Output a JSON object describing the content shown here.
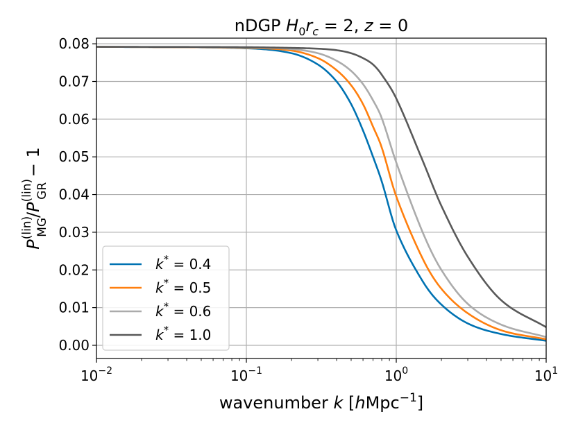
{
  "chart_data": {
    "type": "line",
    "title": {
      "pre": "nDGP ",
      "h": "H",
      "h_sub": "0",
      "r": "r",
      "r_sub": "c",
      "mid": " = 2, ",
      "z": "z",
      "post": " = 0"
    },
    "xlabel": {
      "pre": "wavenumber ",
      "k": "k",
      "mid": " [",
      "h": "h",
      "unit": "Mpc",
      "exp": "−1",
      "post": "]"
    },
    "ylabel": {
      "p1": "P",
      "p1_sup": "(lin)",
      "p1_sub": "MG",
      "slash": "/",
      "p2": "P",
      "p2_sup": "(lin)",
      "p2_sub": "GR",
      "post": " − 1"
    },
    "xscale": "log",
    "xlim": [
      0.01,
      10
    ],
    "ylim": [
      -0.0035,
      0.0815
    ],
    "x_ticks": [
      {
        "value": 0.01,
        "base": "10",
        "exp": "−2"
      },
      {
        "value": 0.1,
        "base": "10",
        "exp": "−1"
      },
      {
        "value": 1,
        "base": "10",
        "exp": "0"
      },
      {
        "value": 10,
        "base": "10",
        "exp": "1"
      }
    ],
    "y_ticks": [
      {
        "value": 0.0,
        "label": "0.00"
      },
      {
        "value": 0.01,
        "label": "0.01"
      },
      {
        "value": 0.02,
        "label": "0.02"
      },
      {
        "value": 0.03,
        "label": "0.03"
      },
      {
        "value": 0.04,
        "label": "0.04"
      },
      {
        "value": 0.05,
        "label": "0.05"
      },
      {
        "value": 0.06,
        "label": "0.06"
      },
      {
        "value": 0.07,
        "label": "0.07"
      },
      {
        "value": 0.08,
        "label": "0.08"
      }
    ],
    "grid": true,
    "legend_position": "lower-left",
    "series": [
      {
        "name": "k* = 0.4",
        "k_label": "k",
        "k_sup": "*",
        "eq_value": " = 0.4",
        "color": "#0072B2",
        "x": [
          0.01,
          0.1,
          0.2,
          0.3,
          0.4,
          0.5,
          0.6,
          0.7,
          0.8,
          1.0,
          1.5,
          2.0,
          3.0,
          5.0,
          10.0
        ],
        "y": [
          0.0792,
          0.0788,
          0.0775,
          0.0745,
          0.07,
          0.064,
          0.057,
          0.05,
          0.0435,
          0.0305,
          0.017,
          0.0108,
          0.0058,
          0.003,
          0.0012
        ]
      },
      {
        "name": "k* = 0.5",
        "k_label": "k",
        "k_sup": "*",
        "eq_value": " = 0.5",
        "color": "#FF7F0E",
        "x": [
          0.01,
          0.1,
          0.2,
          0.3,
          0.4,
          0.5,
          0.6,
          0.7,
          0.8,
          1.0,
          1.5,
          2.0,
          3.0,
          5.0,
          10.0
        ],
        "y": [
          0.0792,
          0.0789,
          0.0782,
          0.0762,
          0.073,
          0.069,
          0.064,
          0.058,
          0.0525,
          0.0395,
          0.023,
          0.015,
          0.0085,
          0.004,
          0.0016
        ]
      },
      {
        "name": "k* = 0.6",
        "k_label": "k",
        "k_sup": "*",
        "eq_value": " = 0.6",
        "color": "#ABABAB",
        "x": [
          0.01,
          0.1,
          0.2,
          0.3,
          0.4,
          0.5,
          0.6,
          0.7,
          0.8,
          1.0,
          1.5,
          2.0,
          3.0,
          5.0,
          10.0
        ],
        "y": [
          0.0792,
          0.079,
          0.0786,
          0.0775,
          0.0755,
          0.0728,
          0.0693,
          0.065,
          0.0603,
          0.0485,
          0.03,
          0.02,
          0.011,
          0.0055,
          0.0022
        ]
      },
      {
        "name": "k* = 1.0",
        "k_label": "k",
        "k_sup": "*",
        "eq_value": " = 1.0",
        "color": "#595959",
        "x": [
          0.01,
          0.1,
          0.2,
          0.3,
          0.4,
          0.5,
          0.6,
          0.7,
          0.8,
          1.0,
          1.5,
          2.0,
          3.0,
          5.0,
          10.0
        ],
        "y": [
          0.0792,
          0.0791,
          0.0789,
          0.0787,
          0.0783,
          0.0775,
          0.0762,
          0.0745,
          0.0718,
          0.0655,
          0.049,
          0.037,
          0.0235,
          0.012,
          0.0048
        ]
      }
    ]
  }
}
